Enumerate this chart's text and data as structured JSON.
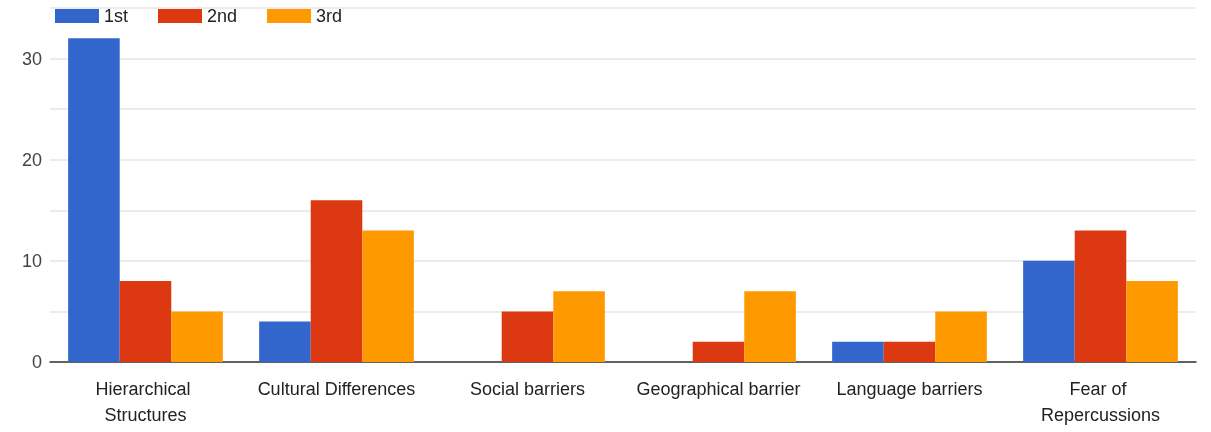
{
  "chart_data": {
    "type": "bar",
    "categories": [
      "Hierarchical Structures",
      "Cultural Differences",
      "Social barriers",
      "Geographical barrier",
      "Language barriers",
      "Fear of Repercussions"
    ],
    "series": [
      {
        "name": "1st",
        "color": "#3366cc",
        "values": [
          32,
          4,
          0,
          0,
          2,
          10
        ]
      },
      {
        "name": "2nd",
        "color": "#dc3912",
        "values": [
          8,
          16,
          5,
          2,
          2,
          13
        ]
      },
      {
        "name": "3rd",
        "color": "#ff9900",
        "values": [
          5,
          13,
          7,
          7,
          5,
          8
        ]
      }
    ],
    "ylim": [
      0,
      35
    ],
    "yticks": [
      0,
      {
        "value": 5,
        "label": null
      },
      10,
      {
        "value": 15,
        "label": null
      },
      20,
      {
        "value": 25,
        "label": null
      },
      30,
      {
        "value": 35,
        "label": null
      }
    ],
    "grid": "y",
    "legend": "top left"
  }
}
